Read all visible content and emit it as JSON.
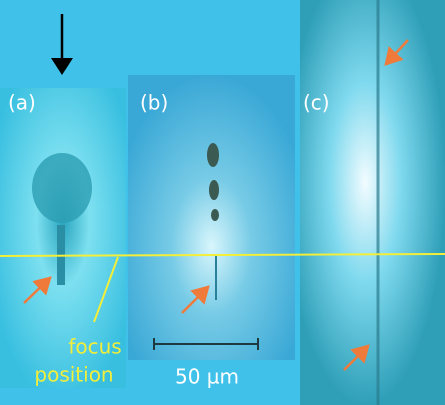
{
  "panels": [
    {
      "label": "(a)"
    },
    {
      "label": "(b)"
    },
    {
      "label": "(c)"
    }
  ],
  "annotation": {
    "line1": "focus",
    "line2": "position"
  },
  "scale_bar": {
    "label": "50 µm"
  }
}
